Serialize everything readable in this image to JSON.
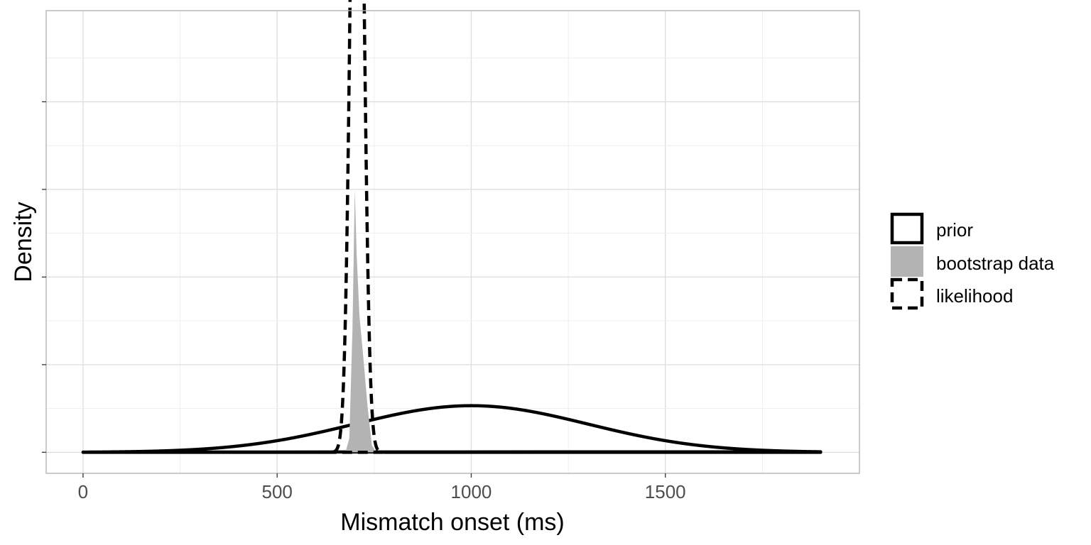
{
  "chart_data": {
    "type": "area",
    "xlabel": "Mismatch onset (ms)",
    "ylabel": "Density",
    "xlim": [
      -95,
      2000
    ],
    "ylim": [
      -0.0006,
      0.0126
    ],
    "x_ticks": [
      0,
      500,
      1000,
      1500
    ],
    "x_tick_labels": [
      "0",
      "500",
      "1000",
      "1500"
    ],
    "y_ticks": [
      0,
      0.0025,
      0.005,
      0.0075,
      0.01
    ],
    "y_tick_labels_shown": false,
    "grid": true,
    "legend_position": "right",
    "series": [
      {
        "name": "prior",
        "style": "solid-line",
        "distribution": "normal",
        "mean": 1000,
        "sd": 300,
        "x_range": [
          0,
          1900
        ]
      },
      {
        "name": "bootstrap data",
        "style": "grey-fill",
        "color": "#b3b3b3",
        "points": [
          [
            676,
            0
          ],
          [
            686,
            0.0004
          ],
          [
            694,
            0.0035
          ],
          [
            700,
            0.0075
          ],
          [
            705,
            0.0056
          ],
          [
            712,
            0.0039
          ],
          [
            722,
            0.0027
          ],
          [
            733,
            0.0013
          ],
          [
            744,
            0.0002
          ],
          [
            755,
            0
          ]
        ]
      },
      {
        "name": "likelihood",
        "style": "dashed-line",
        "distribution": "normal",
        "mean": 706,
        "sd": 15.5,
        "x_range": [
          0,
          1900
        ]
      }
    ]
  }
}
